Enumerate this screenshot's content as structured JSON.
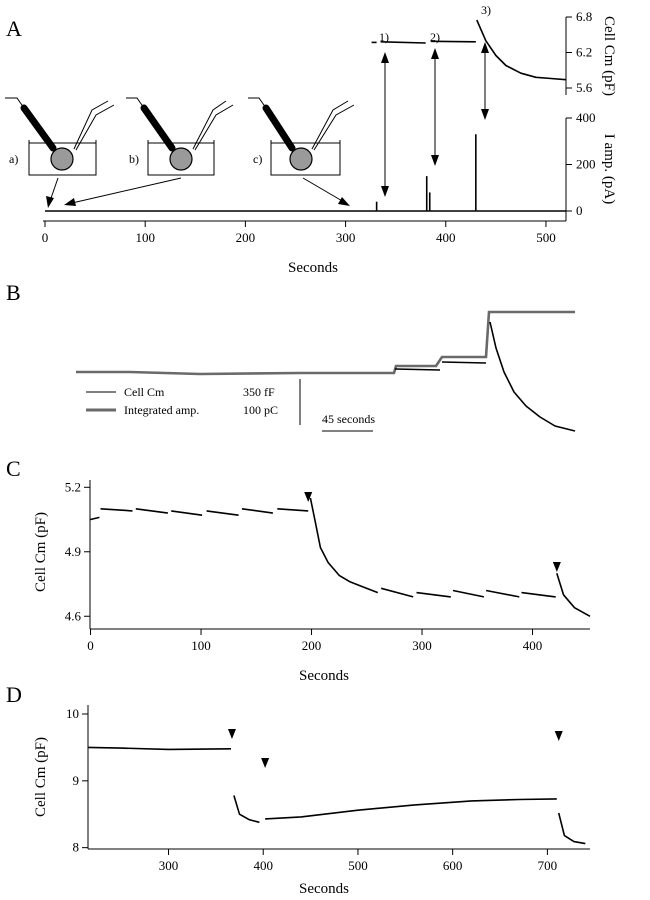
{
  "chart_data": [
    {
      "panel": "A",
      "type": "line",
      "xlabel": "Seconds",
      "xlim": [
        0,
        520
      ],
      "xticks": [
        "0",
        "100",
        "200",
        "300",
        "400",
        "500"
      ],
      "series": [
        {
          "name": "Cell Cm",
          "ylabel": "Cell Cm (pF)",
          "ylim": [
            5.6,
            6.8
          ],
          "yticks": [
            "5.6",
            "6.2",
            "6.8"
          ],
          "segments": [
            [
              [
                326,
                6.37
              ],
              [
                331,
                6.37
              ]
            ],
            [
              [
                335,
                6.38
              ],
              [
                380,
                6.36
              ]
            ],
            [
              [
                385,
                6.39
              ],
              [
                430,
                6.38
              ]
            ],
            [
              [
                431,
                6.75
              ],
              [
                440,
                6.4
              ],
              [
                450,
                6.15
              ],
              [
                460,
                5.98
              ],
              [
                475,
                5.85
              ],
              [
                490,
                5.78
              ],
              [
                505,
                5.76
              ],
              [
                520,
                5.74
              ]
            ]
          ]
        },
        {
          "name": "I amp.",
          "ylabel": "I amp. (pA)",
          "ylim": [
            0,
            400
          ],
          "yticks": [
            "0",
            "200",
            "400"
          ],
          "baseline": 0,
          "spikes": [
            [
              331,
              40
            ],
            [
              381,
              150
            ],
            [
              384,
              80
            ],
            [
              430,
              330
            ]
          ]
        }
      ],
      "annotations": [
        "1)",
        "2)",
        "3)",
        "a)",
        "b)",
        "c)"
      ],
      "diagram_markers_seconds": {
        "a)": 5,
        "b)": 20,
        "c)": 296
      }
    },
    {
      "panel": "B",
      "type": "line",
      "legend": [
        {
          "label": "Cell Cm",
          "scale": "350 fF"
        },
        {
          "label": "Integrated amp.",
          "scale": "100 pC"
        }
      ],
      "time_scale": "45 seconds"
    },
    {
      "panel": "C",
      "type": "line",
      "xlabel": "Seconds",
      "ylabel": "Cell Cm (pF)",
      "xlim": [
        -5,
        452
      ],
      "ylim": [
        4.55,
        5.22
      ],
      "xticks": [
        "0",
        "100",
        "200",
        "300",
        "400"
      ],
      "yticks": [
        "4.6",
        "4.9",
        "5.2"
      ],
      "arrowheads_seconds": [
        197,
        422
      ],
      "series": [
        {
          "name": "",
          "segments": [
            [
              [
                0,
                5.05
              ],
              [
                8,
                5.06
              ]
            ],
            [
              [
                9,
                5.1
              ],
              [
                38,
                5.09
              ]
            ],
            [
              [
                41,
                5.1
              ],
              [
                70,
                5.08
              ]
            ],
            [
              [
                73,
                5.09
              ],
              [
                101,
                5.07
              ]
            ],
            [
              [
                105,
                5.09
              ],
              [
                134,
                5.07
              ]
            ],
            [
              [
                137,
                5.1
              ],
              [
                165,
                5.08
              ]
            ],
            [
              [
                169,
                5.1
              ],
              [
                197,
                5.09
              ]
            ],
            [
              [
                199,
                5.15
              ],
              [
                203,
                5.05
              ],
              [
                208,
                4.92
              ],
              [
                215,
                4.85
              ],
              [
                225,
                4.79
              ],
              [
                235,
                4.76
              ],
              [
                245,
                4.74
              ],
              [
                260,
                4.71
              ]
            ],
            [
              [
                263,
                4.73
              ],
              [
                292,
                4.69
              ]
            ],
            [
              [
                295,
                4.71
              ],
              [
                326,
                4.69
              ]
            ],
            [
              [
                328,
                4.72
              ],
              [
                356,
                4.69
              ]
            ],
            [
              [
                358,
                4.72
              ],
              [
                388,
                4.69
              ]
            ],
            [
              [
                390,
                4.71
              ],
              [
                421,
                4.69
              ]
            ],
            [
              [
                422,
                4.8
              ],
              [
                428,
                4.7
              ],
              [
                438,
                4.64
              ],
              [
                452,
                4.6
              ]
            ]
          ]
        }
      ]
    },
    {
      "panel": "D",
      "type": "line",
      "xlabel": "Seconds",
      "ylabel": "Cell Cm (pF)",
      "xlim": [
        215,
        745
      ],
      "ylim": [
        7.95,
        10.0
      ],
      "xticks": [
        "300",
        "400",
        "500",
        "600",
        "700"
      ],
      "yticks": [
        "8",
        "9",
        "10"
      ],
      "arrowheads_seconds": [
        367,
        402,
        712
      ],
      "series": [
        {
          "name": "",
          "segments": [
            [
              [
                215,
                9.5
              ],
              [
                250,
                9.49
              ],
              [
                300,
                9.47
              ],
              [
                366,
                9.48
              ]
            ],
            [
              [
                369,
                8.78
              ],
              [
                375,
                8.5
              ],
              [
                385,
                8.42
              ],
              [
                396,
                8.38
              ]
            ],
            [
              [
                402,
                8.43
              ],
              [
                440,
                8.46
              ],
              [
                500,
                8.56
              ],
              [
                560,
                8.64
              ],
              [
                620,
                8.7
              ],
              [
                670,
                8.72
              ],
              [
                710,
                8.73
              ]
            ],
            [
              [
                712,
                8.52
              ],
              [
                718,
                8.18
              ],
              [
                728,
                8.09
              ],
              [
                740,
                8.06
              ]
            ]
          ]
        }
      ]
    }
  ]
}
